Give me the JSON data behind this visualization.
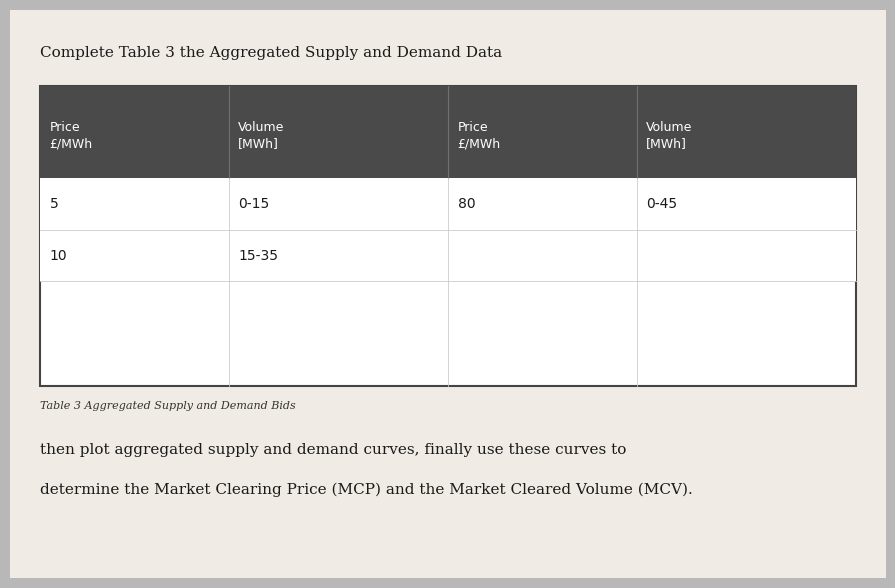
{
  "title": "Complete Table 3 the Aggregated Supply and Demand Data",
  "table_caption": "Table 3 Aggregated Supply and Demand Bids",
  "footer_line1": "then plot aggregated supply and demand curves, finally use these curves to",
  "footer_line2": "determine the Market Clearing Price (MCP) and the Market Cleared Volume (MCV).",
  "col_headers": [
    "Price\n£/MWh",
    "Volume\n[MWh]",
    "Price\n£/MWh",
    "Volume\n[MWh]"
  ],
  "supply_data": [
    [
      "5",
      "0-15"
    ],
    [
      "10",
      "15-35"
    ]
  ],
  "demand_data": [
    [
      "80",
      "0-45"
    ]
  ],
  "header_bg": "#4a4a4a",
  "header_text_color": "#ffffff",
  "table_border_color": "#444444",
  "outer_bg": "#b8b8b8",
  "paper_color": "#f0ece5",
  "body_text_color": "#1a1a1a",
  "caption_color": "#333333"
}
